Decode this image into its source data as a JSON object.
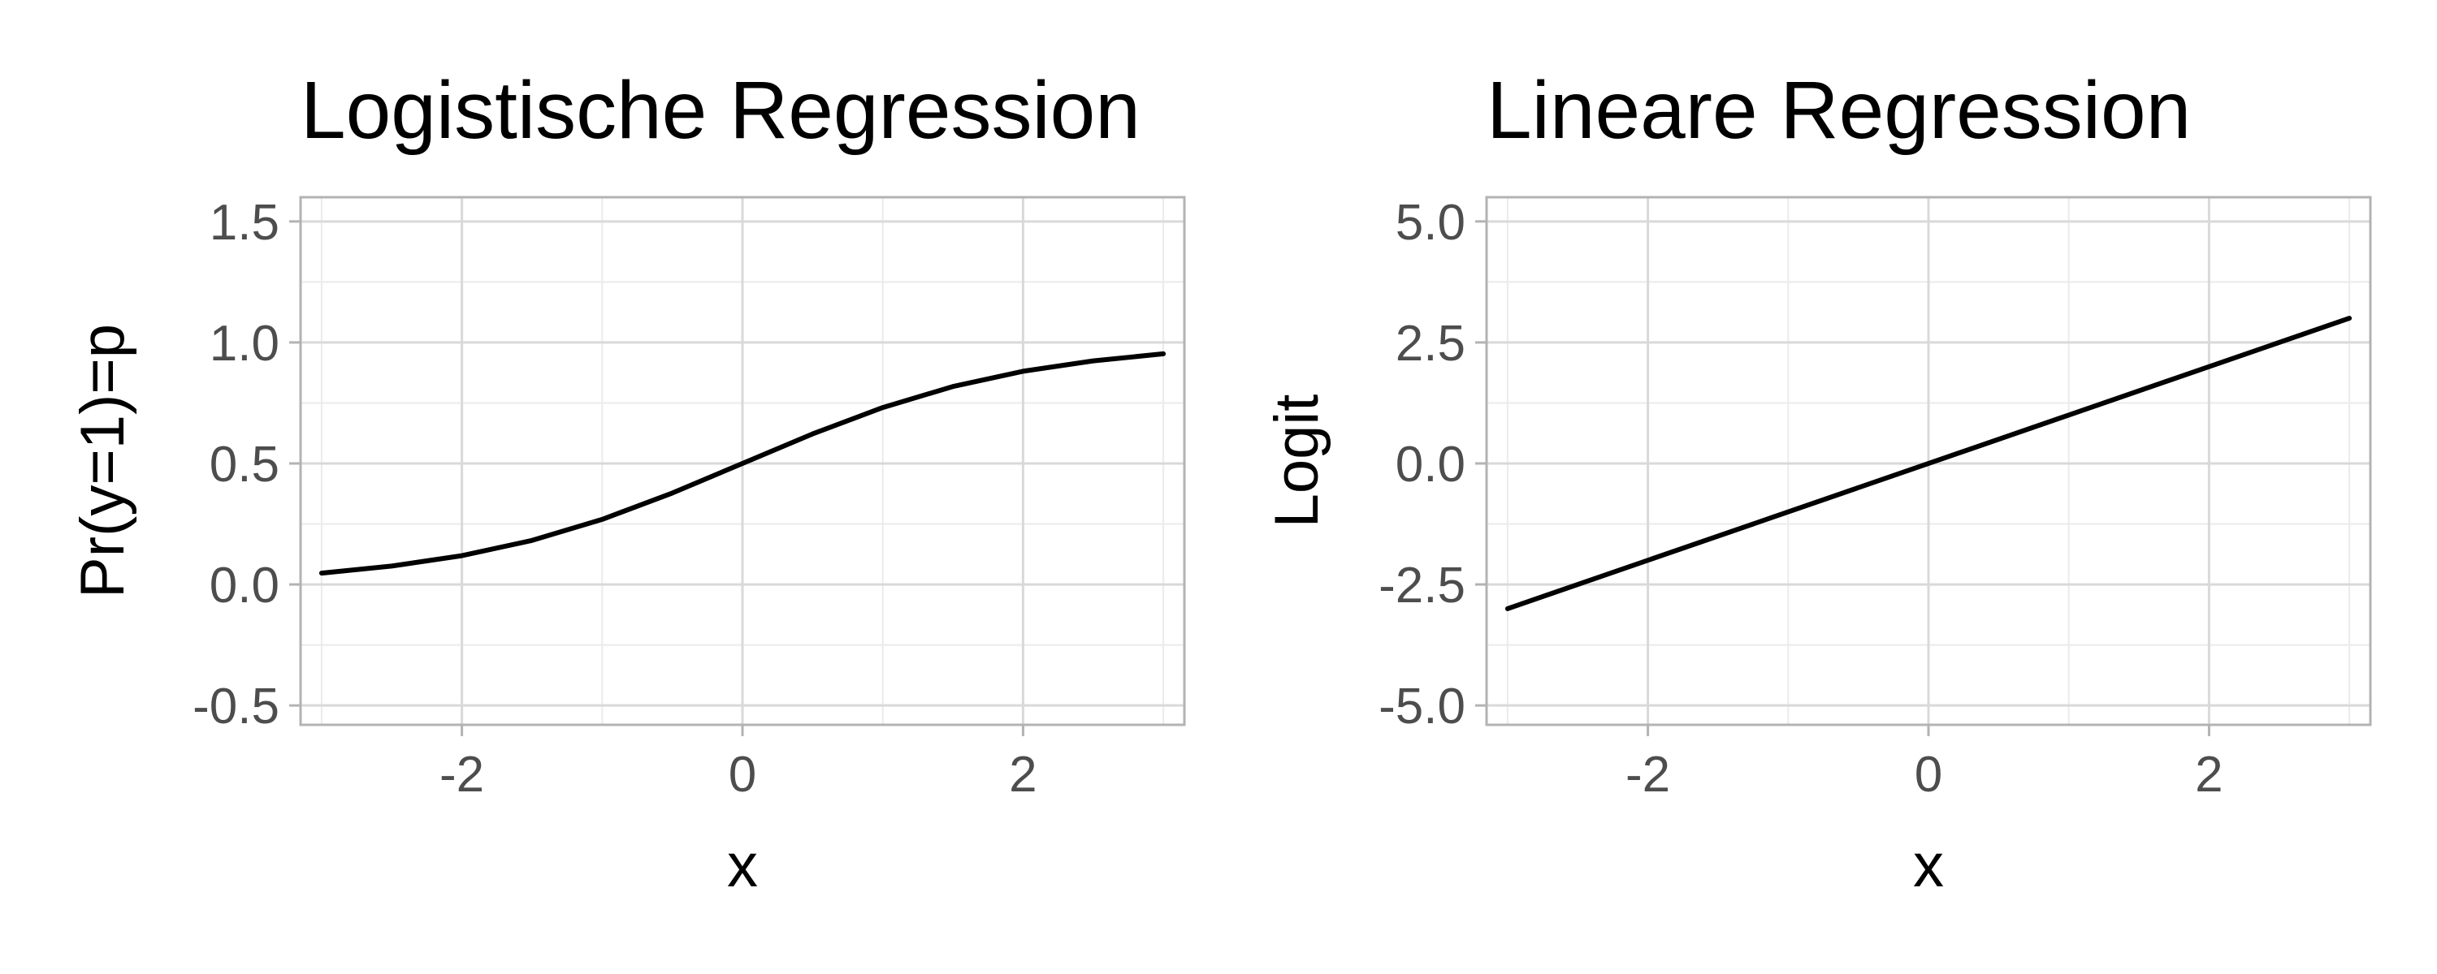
{
  "chart_data": [
    {
      "type": "line",
      "title": "Logistische Regression",
      "xlabel": "x",
      "ylabel": "Pr(y=1)=p",
      "xlim": [
        -3.15,
        3.15
      ],
      "ylim": [
        -0.58,
        1.6
      ],
      "xticks": [
        -2,
        0,
        2
      ],
      "xtick_labels": [
        "-2",
        "0",
        "2"
      ],
      "yticks": [
        -0.5,
        0.0,
        0.5,
        1.0,
        1.5
      ],
      "ytick_labels": [
        "-0.5",
        "0.0",
        "0.5",
        "1.0",
        "1.5"
      ],
      "grid": true,
      "series": [
        {
          "x": [
            -3,
            -2.5,
            -2,
            -1.5,
            -1,
            -0.5,
            0,
            0.5,
            1,
            1.5,
            2,
            2.5,
            3
          ],
          "y": [
            0.047,
            0.076,
            0.119,
            0.182,
            0.269,
            0.378,
            0.5,
            0.622,
            0.731,
            0.818,
            0.881,
            0.924,
            0.953
          ]
        }
      ]
    },
    {
      "type": "line",
      "title": "Lineare Regression",
      "xlabel": "x",
      "ylabel": "Logit",
      "xlim": [
        -3.15,
        3.15
      ],
      "ylim": [
        -5.4,
        5.5
      ],
      "xticks": [
        -2,
        0,
        2
      ],
      "xtick_labels": [
        "-2",
        "0",
        "2"
      ],
      "yticks": [
        -5.0,
        -2.5,
        0.0,
        2.5,
        5.0
      ],
      "ytick_labels": [
        "-5.0",
        "-2.5",
        "0.0",
        "2.5",
        "5.0"
      ],
      "grid": true,
      "series": [
        {
          "x": [
            -3,
            3
          ],
          "y": [
            -3,
            3
          ]
        }
      ]
    }
  ]
}
